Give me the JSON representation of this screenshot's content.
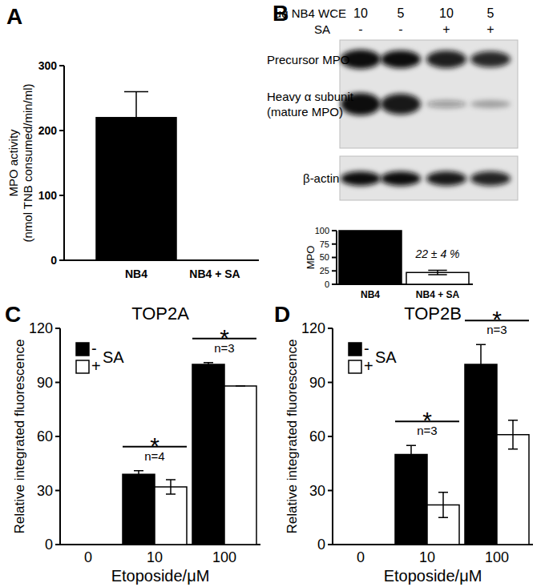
{
  "panel_labels": [
    "A",
    "B",
    "C",
    "D"
  ],
  "blot": {
    "header_rows": [
      {
        "label": "μg NB4 WCE",
        "lanes": [
          "10",
          "5",
          "10",
          "5"
        ]
      },
      {
        "label": "SA",
        "lanes": [
          "-",
          "-",
          "+",
          "+"
        ]
      }
    ],
    "bands": [
      {
        "label": [
          "Precursor MPO"
        ]
      },
      {
        "label": [
          "Heavy α subunit",
          "(mature MPO)"
        ]
      }
    ],
    "loading": {
      "label": "β-actin"
    }
  },
  "chart_data": [
    {
      "type": "bar",
      "categories": [
        "NB4",
        "NB4 + SA"
      ],
      "values": [
        220,
        0
      ],
      "errors": [
        40,
        0
      ],
      "colors": [
        "#000000",
        "#000000"
      ],
      "ylabel": [
        "MPO activity",
        "(nmol TNB consumed/min/ml)"
      ],
      "ylim": [
        0,
        300
      ],
      "yticks": [
        0,
        100,
        200,
        300
      ]
    },
    {
      "type": "bar",
      "categories": [
        "NB4",
        "NB4 + SA"
      ],
      "values": [
        100,
        22
      ],
      "errors": [
        null,
        4
      ],
      "colors": [
        "#000000",
        "#ffffff"
      ],
      "ylabel": "MPO",
      "ylim": [
        0,
        100
      ],
      "yticks": [
        0,
        25,
        50,
        75,
        100
      ],
      "annotations": [
        {
          "index": 1,
          "text": "22 ± 4 %"
        }
      ]
    },
    {
      "type": "bar",
      "title": "TOP2A",
      "categories": [
        "0",
        "10",
        "100"
      ],
      "xlabel": "Etoposide/μM",
      "ylabel": "Relative integrated fluorescence",
      "ylim": [
        0,
        120
      ],
      "yticks": [
        0,
        30,
        60,
        90,
        120
      ],
      "legend": "upper left",
      "legend_title": "SA",
      "series": [
        {
          "name": "-",
          "color": "#000000",
          "values": [
            0,
            39,
            100
          ],
          "errors": [
            0,
            2,
            1
          ]
        },
        {
          "name": "+",
          "color": "#ffffff",
          "values": [
            0,
            32,
            88
          ],
          "errors": [
            0,
            4,
            0
          ]
        }
      ],
      "annotations": [
        {
          "index": 1,
          "text": "*",
          "note": "n=4"
        },
        {
          "index": 2,
          "text": "*",
          "note": "n=3"
        }
      ]
    },
    {
      "type": "bar",
      "title": "TOP2B",
      "categories": [
        "0",
        "10",
        "100"
      ],
      "xlabel": "Etoposide/μM",
      "ylabel": "Relative integrated fluorescence",
      "ylim": [
        0,
        120
      ],
      "yticks": [
        0,
        30,
        60,
        90,
        120
      ],
      "legend": "upper left",
      "legend_title": "SA",
      "series": [
        {
          "name": "-",
          "color": "#000000",
          "values": [
            0,
            50,
            100
          ],
          "errors": [
            0,
            5,
            11
          ]
        },
        {
          "name": "+",
          "color": "#ffffff",
          "values": [
            0,
            22,
            61
          ],
          "errors": [
            0,
            7,
            8
          ]
        }
      ],
      "annotations": [
        {
          "index": 1,
          "text": "*",
          "note": "n=3"
        },
        {
          "index": 2,
          "text": "*",
          "note": "n=3"
        }
      ]
    }
  ]
}
